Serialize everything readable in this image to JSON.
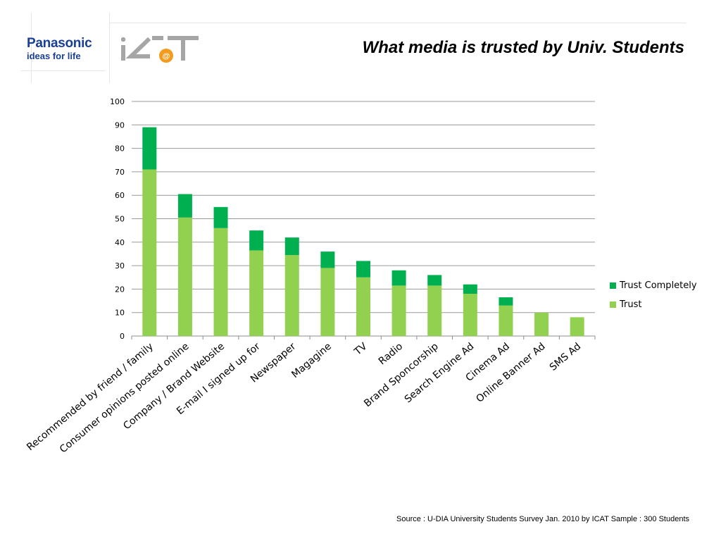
{
  "header": {
    "title": "What media is trusted by Univ. Students",
    "panasonic_brand": "Panasonic",
    "panasonic_tagline": "ideas for life",
    "icat_logo": "ICAT"
  },
  "footer": {
    "source": "Source : U-DIA University Students Survey Jan. 2010 by ICAT Sample : 300 Students"
  },
  "colors": {
    "trust": "#92d050",
    "trust_completely": "#00b050",
    "icat_grey": "#a6a6a6",
    "icat_orange": "#f29b1d",
    "panasonic_blue": "#1a3f98"
  },
  "chart_data": {
    "type": "bar",
    "stacked": true,
    "categories": [
      "Recommended by friend / family",
      "Consumer opinions posted online",
      "Company / Brand Website",
      "E-mail I signed up for",
      "Newspaper",
      "Magagine",
      "TV",
      "Radio",
      "Brand Sponcorship",
      "Search Engine Ad",
      "Cinema Ad",
      "Online Banner Ad",
      "SMS Ad"
    ],
    "series": [
      {
        "name": "Trust",
        "color": "#92d050",
        "values": [
          71,
          50.5,
          46,
          36.5,
          34.5,
          29,
          25,
          21.5,
          21.5,
          18,
          13,
          10,
          8
        ]
      },
      {
        "name": "Trust Completely",
        "color": "#00b050",
        "values": [
          18,
          10,
          9,
          8.5,
          7.5,
          7,
          7,
          6.5,
          4.5,
          4,
          3.5,
          0,
          0
        ]
      }
    ],
    "ylim": [
      0,
      100
    ],
    "yticks": [
      0,
      10,
      20,
      30,
      40,
      50,
      60,
      70,
      80,
      90,
      100
    ],
    "grid": true,
    "legend_position": "right",
    "legend_order": [
      "Trust Completely",
      "Trust"
    ]
  }
}
